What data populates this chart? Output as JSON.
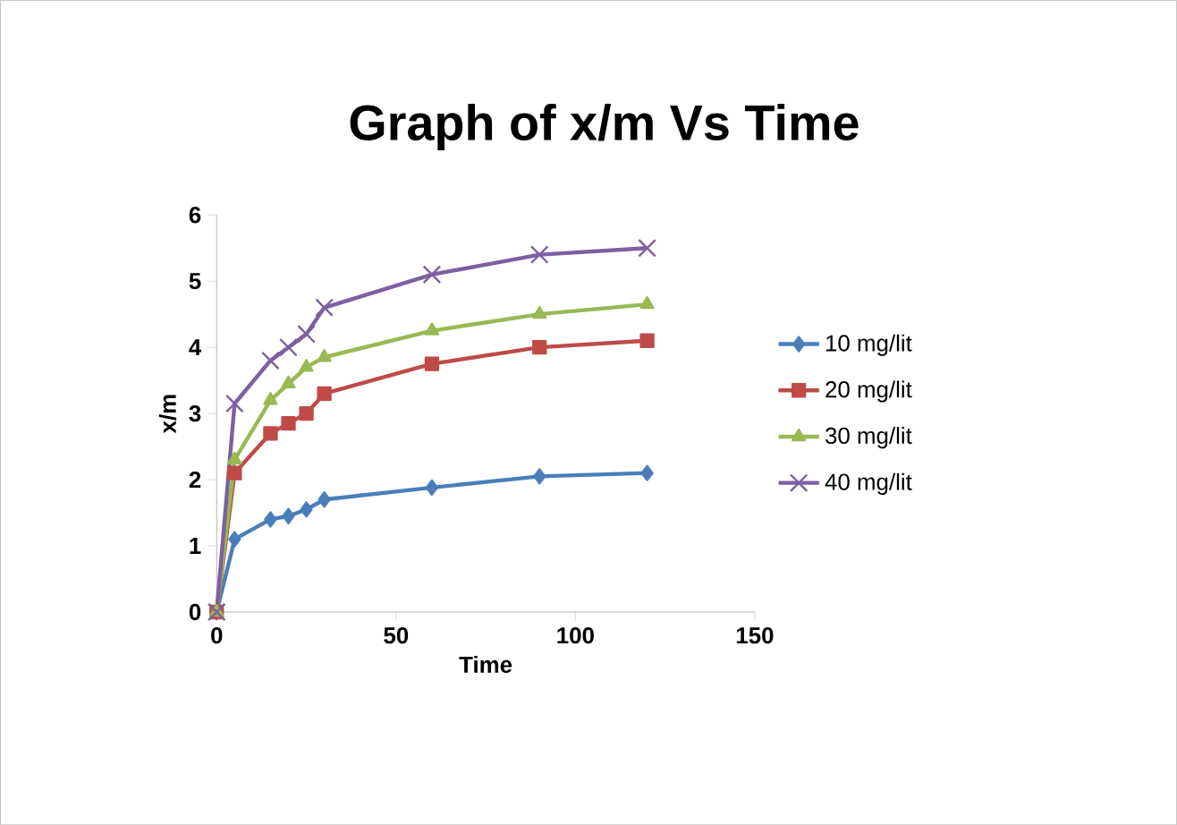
{
  "chart_data": {
    "type": "line",
    "title": "Graph of x/m Vs Time",
    "xlabel": "Time",
    "ylabel": "x/m",
    "x": [
      0,
      5,
      15,
      20,
      25,
      30,
      60,
      90,
      120
    ],
    "series": [
      {
        "name": "10 mg/lit",
        "color": "#4a7ebb",
        "marker": "diamond",
        "values": [
          0,
          1.1,
          1.4,
          1.45,
          1.55,
          1.7,
          1.88,
          2.05,
          2.1
        ]
      },
      {
        "name": "20 mg/lit",
        "color": "#be4b48",
        "marker": "square",
        "values": [
          0,
          2.1,
          2.7,
          2.85,
          3.0,
          3.3,
          3.75,
          4.0,
          4.1
        ]
      },
      {
        "name": "30 mg/lit",
        "color": "#98b954",
        "marker": "triangle",
        "values": [
          0,
          2.3,
          3.2,
          3.45,
          3.7,
          3.85,
          4.25,
          4.5,
          4.65
        ]
      },
      {
        "name": "40 mg/lit",
        "color": "#7d60a0",
        "marker": "cross",
        "values": [
          0,
          3.15,
          3.8,
          4.0,
          4.2,
          4.6,
          5.1,
          5.4,
          5.5
        ]
      }
    ],
    "xlim": [
      0,
      150
    ],
    "xticks": [
      0,
      50,
      100,
      150
    ],
    "ylim": [
      0,
      6
    ],
    "yticks": [
      0,
      1,
      2,
      3,
      4,
      5,
      6
    ],
    "grid": false,
    "legend": "right"
  }
}
